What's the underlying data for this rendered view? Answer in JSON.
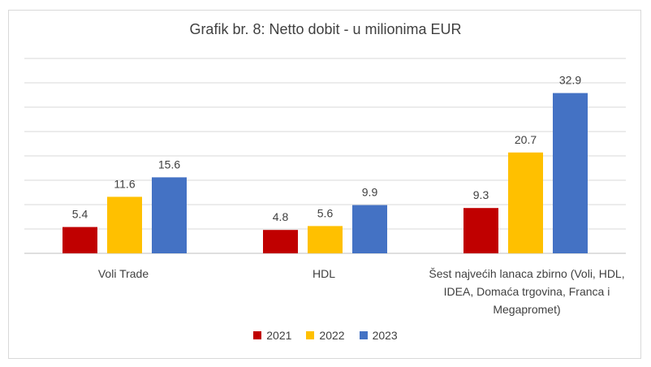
{
  "chart_data": {
    "type": "bar",
    "title": "Grafik br. 8: Netto dobit - u milionima EUR",
    "categories": [
      "Voli Trade",
      "HDL",
      "Šest najvećih lanaca zbirno (Voli, HDL, IDEA, Domaća trgovina, Franca i Megapromet)"
    ],
    "series": [
      {
        "name": "2021",
        "color": "#c00000",
        "values": [
          5.4,
          4.8,
          9.3
        ]
      },
      {
        "name": "2022",
        "color": "#ffc000",
        "values": [
          11.6,
          5.6,
          20.7
        ]
      },
      {
        "name": "2023",
        "color": "#4472c4",
        "values": [
          15.6,
          9.9,
          32.9
        ]
      }
    ],
    "ylim": [
      0,
      40
    ],
    "grid": true,
    "legend_position": "bottom"
  }
}
